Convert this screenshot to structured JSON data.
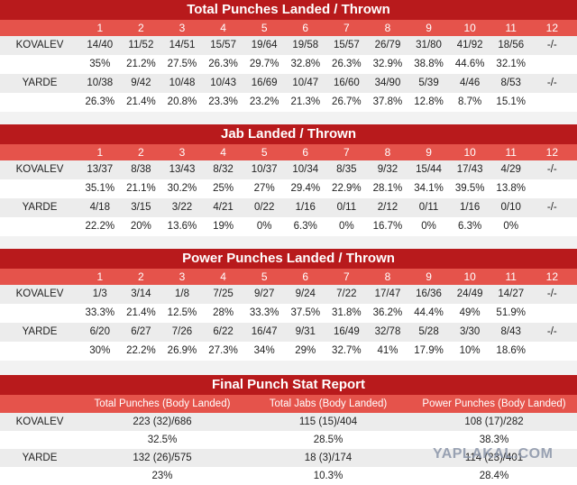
{
  "rounds": [
    "1",
    "2",
    "3",
    "4",
    "5",
    "6",
    "7",
    "8",
    "9",
    "10",
    "11",
    "12"
  ],
  "total": {
    "title": "Total Punches Landed / Thrown",
    "kovalev": {
      "name": "KOVALEV",
      "counts": [
        "14/40",
        "11/52",
        "14/51",
        "15/57",
        "19/64",
        "19/58",
        "15/57",
        "26/79",
        "31/80",
        "41/92",
        "18/56",
        "-/-"
      ],
      "pct": [
        "35%",
        "21.2%",
        "27.5%",
        "26.3%",
        "29.7%",
        "32.8%",
        "26.3%",
        "32.9%",
        "38.8%",
        "44.6%",
        "32.1%",
        ""
      ]
    },
    "yarde": {
      "name": "YARDE",
      "counts": [
        "10/38",
        "9/42",
        "10/48",
        "10/43",
        "16/69",
        "10/47",
        "16/60",
        "34/90",
        "5/39",
        "4/46",
        "8/53",
        "-/-"
      ],
      "pct": [
        "26.3%",
        "21.4%",
        "20.8%",
        "23.3%",
        "23.2%",
        "21.3%",
        "26.7%",
        "37.8%",
        "12.8%",
        "8.7%",
        "15.1%",
        ""
      ]
    }
  },
  "jab": {
    "title": "Jab Landed / Thrown",
    "kovalev": {
      "name": "KOVALEV",
      "counts": [
        "13/37",
        "8/38",
        "13/43",
        "8/32",
        "10/37",
        "10/34",
        "8/35",
        "9/32",
        "15/44",
        "17/43",
        "4/29",
        "-/-"
      ],
      "pct": [
        "35.1%",
        "21.1%",
        "30.2%",
        "25%",
        "27%",
        "29.4%",
        "22.9%",
        "28.1%",
        "34.1%",
        "39.5%",
        "13.8%",
        ""
      ]
    },
    "yarde": {
      "name": "YARDE",
      "counts": [
        "4/18",
        "3/15",
        "3/22",
        "4/21",
        "0/22",
        "1/16",
        "0/11",
        "2/12",
        "0/11",
        "1/16",
        "0/10",
        "-/-"
      ],
      "pct": [
        "22.2%",
        "20%",
        "13.6%",
        "19%",
        "0%",
        "6.3%",
        "0%",
        "16.7%",
        "0%",
        "6.3%",
        "0%",
        ""
      ]
    }
  },
  "power": {
    "title": "Power Punches Landed / Thrown",
    "kovalev": {
      "name": "KOVALEV",
      "counts": [
        "1/3",
        "3/14",
        "1/8",
        "7/25",
        "9/27",
        "9/24",
        "7/22",
        "17/47",
        "16/36",
        "24/49",
        "14/27",
        "-/-"
      ],
      "pct": [
        "33.3%",
        "21.4%",
        "12.5%",
        "28%",
        "33.3%",
        "37.5%",
        "31.8%",
        "36.2%",
        "44.4%",
        "49%",
        "51.9%",
        ""
      ]
    },
    "yarde": {
      "name": "YARDE",
      "counts": [
        "6/20",
        "6/27",
        "7/26",
        "6/22",
        "16/47",
        "9/31",
        "16/49",
        "32/78",
        "5/28",
        "3/30",
        "8/43",
        "-/-"
      ],
      "pct": [
        "30%",
        "22.2%",
        "26.9%",
        "27.3%",
        "34%",
        "29%",
        "32.7%",
        "41%",
        "17.9%",
        "10%",
        "18.6%",
        ""
      ]
    }
  },
  "final": {
    "title": "Final Punch Stat Report",
    "headers": [
      "Total Punches (Body Landed)",
      "Total Jabs (Body Landed)",
      "Power Punches (Body Landed)"
    ],
    "kovalev": {
      "name": "KOVALEV",
      "counts": [
        "223 (32)/686",
        "115 (15)/404",
        "108 (17)/282"
      ],
      "pct": [
        "32.5%",
        "28.5%",
        "38.3%"
      ]
    },
    "yarde": {
      "name": "YARDE",
      "counts": [
        "132 (26)/575",
        "18 (3)/174",
        "114 (23)/401"
      ],
      "pct": [
        "23%",
        "10.3%",
        "28.4%"
      ]
    }
  },
  "watermark": "YAPLAKAL.COM"
}
